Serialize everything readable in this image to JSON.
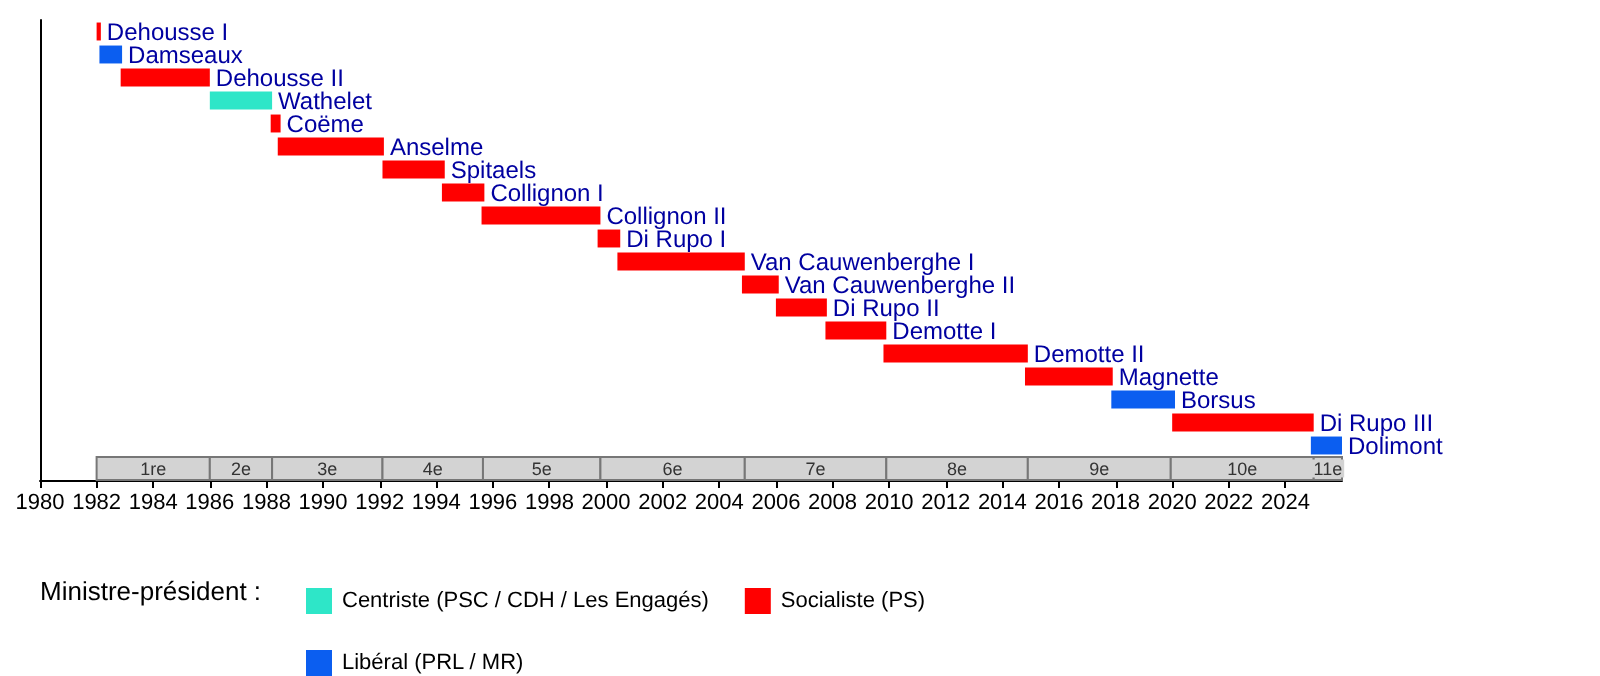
{
  "chart_data": {
    "type": "bar",
    "orientation": "horizontal",
    "legend_title": "Ministre-président :",
    "legend": "bottom left",
    "tick_labels": "x",
    "grid": false,
    "categories": [
      "Dehousse I",
      "Damseaux",
      "Dehousse II",
      "Wathelet",
      "Coëme",
      "Anselme",
      "Spitaels",
      "Collignon I",
      "Collignon II",
      "Di Rupo I",
      "Van Cauwenberghe I",
      "Van Cauwenberghe II",
      "Di Rupo II",
      "Demotte I",
      "Demotte II",
      "Magnette",
      "Borsus",
      "Di Rupo III",
      "Dolimont"
    ],
    "series": [
      {
        "name": "Centriste (PSC / CDH / Les Engagés)",
        "color": "#2ee6c8",
        "base": [
          null,
          null,
          null,
          1986.0,
          null,
          null,
          null,
          null,
          null,
          null,
          null,
          null,
          null,
          null,
          null,
          null,
          null,
          null,
          null
        ],
        "values": [
          null,
          null,
          null,
          2.2,
          null,
          null,
          null,
          null,
          null,
          null,
          null,
          null,
          null,
          null,
          null,
          null,
          null,
          null,
          null
        ]
      },
      {
        "name": "Socialiste (PS)",
        "color": "#ff0000",
        "base": [
          1982.0,
          null,
          1982.85,
          null,
          1988.15,
          1988.4,
          1992.1,
          1994.2,
          1995.6,
          1999.7,
          2000.4,
          2004.8,
          2006.0,
          2007.75,
          2009.8,
          2014.8,
          null,
          2020.0,
          null
        ],
        "values": [
          0.15,
          null,
          3.15,
          null,
          0.35,
          3.75,
          2.2,
          1.5,
          4.2,
          0.8,
          4.5,
          1.3,
          1.8,
          2.15,
          5.1,
          3.1,
          null,
          5.0,
          null
        ]
      },
      {
        "name": "Libéral (PRL / MR)",
        "color": "#0b5ef0",
        "base": [
          null,
          1982.1,
          null,
          null,
          null,
          null,
          null,
          null,
          null,
          null,
          null,
          null,
          null,
          null,
          null,
          null,
          2017.85,
          null,
          2024.9
        ],
        "values": [
          null,
          0.8,
          null,
          null,
          null,
          null,
          null,
          null,
          null,
          null,
          null,
          null,
          null,
          null,
          null,
          null,
          2.25,
          null,
          1.1
        ]
      }
    ],
    "bands": [
      {
        "axis": "x",
        "from": 1982,
        "to": 1986,
        "label": "1re",
        "color": "#d3d3d3"
      },
      {
        "axis": "x",
        "from": 1986,
        "to": 1988.2,
        "label": "2e",
        "color": "#d3d3d3"
      },
      {
        "axis": "x",
        "from": 1988.2,
        "to": 1992.1,
        "label": "3e",
        "color": "#d3d3d3"
      },
      {
        "axis": "x",
        "from": 1992.1,
        "to": 1995.65,
        "label": "4e",
        "color": "#d3d3d3"
      },
      {
        "axis": "x",
        "from": 1995.65,
        "to": 1999.8,
        "label": "5e",
        "color": "#d3d3d3"
      },
      {
        "axis": "x",
        "from": 1999.8,
        "to": 2004.9,
        "label": "6e",
        "color": "#d3d3d3"
      },
      {
        "axis": "x",
        "from": 2004.9,
        "to": 2009.9,
        "label": "7e",
        "color": "#d3d3d3"
      },
      {
        "axis": "x",
        "from": 2009.9,
        "to": 2014.9,
        "label": "8e",
        "color": "#d3d3d3"
      },
      {
        "axis": "x",
        "from": 2014.9,
        "to": 2019.95,
        "label": "9e",
        "color": "#d3d3d3"
      },
      {
        "axis": "x",
        "from": 2019.95,
        "to": 2025.0,
        "label": "10e",
        "color": "#d3d3d3"
      },
      {
        "axis": "x",
        "from": 2025.0,
        "to": 2026.0,
        "label": "11e",
        "color": "#d3d3d3"
      }
    ],
    "xlim": [
      1980,
      2026
    ],
    "xticks": [
      1980,
      1982,
      1984,
      1986,
      1988,
      1990,
      1992,
      1994,
      1996,
      1998,
      2000,
      2002,
      2004,
      2006,
      2008,
      2010,
      2012,
      2014,
      2016,
      2018,
      2020,
      2022,
      2024
    ]
  }
}
